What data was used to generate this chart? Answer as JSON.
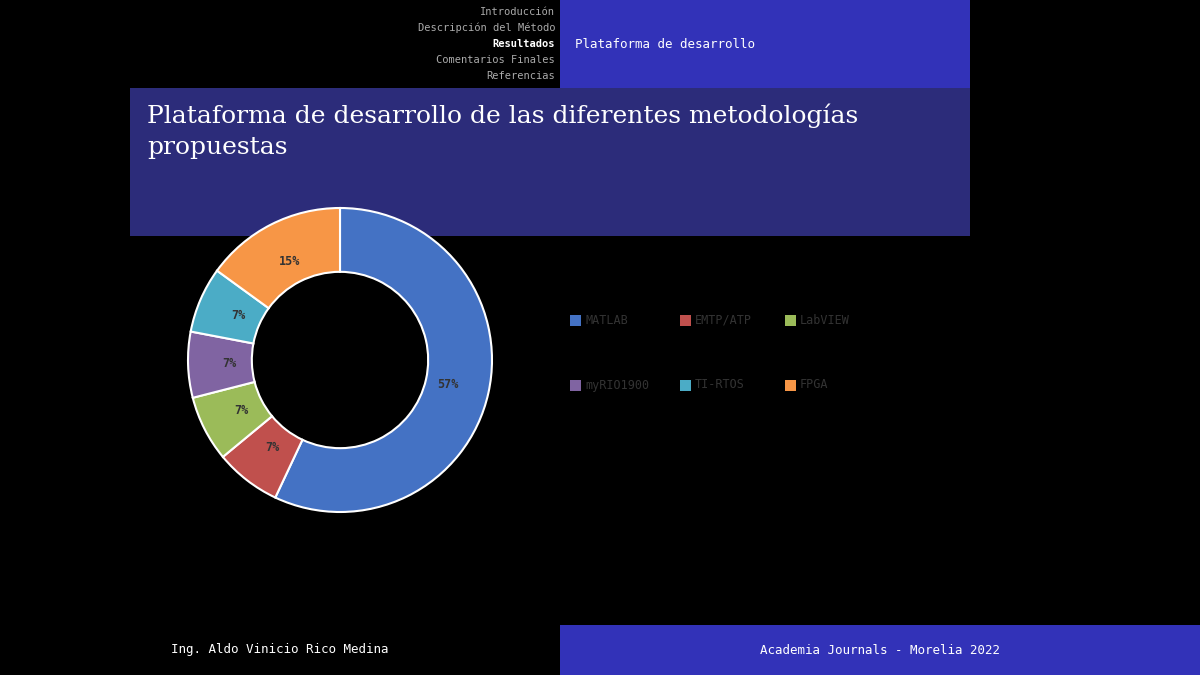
{
  "title": "Plataforma de desarrollo de las diferentes metodologías\npropuestas",
  "slices": [
    57,
    7,
    7,
    7,
    7,
    15
  ],
  "labels": [
    "MATLAB",
    "EMTP/ATP",
    "LabVIEW",
    "myRIO1900",
    "TI-RTOS",
    "FPGA"
  ],
  "colors": [
    "#4472C4",
    "#C0504D",
    "#9BBB59",
    "#8064A2",
    "#4BACC6",
    "#F79646"
  ],
  "pct_labels": [
    "57%",
    "7%",
    "7%",
    "7%",
    "7%",
    "15%"
  ],
  "nav_items": [
    "Introducción",
    "Descripción del Método",
    "Resultados",
    "Comentarios Finales",
    "Referencias"
  ],
  "nav_right_text": "Plataforma de desarrollo",
  "footer_left": "Ing. Aldo Vinicio Rico Medina",
  "footer_right": "Academia Journals - Morelia 2022",
  "bg_color": "#000000",
  "nav_right_bg": "#3232B8",
  "title_color": "#2F2F2F",
  "title_bg": "#2C2C7A",
  "slide_bg": "#FFFFFF"
}
